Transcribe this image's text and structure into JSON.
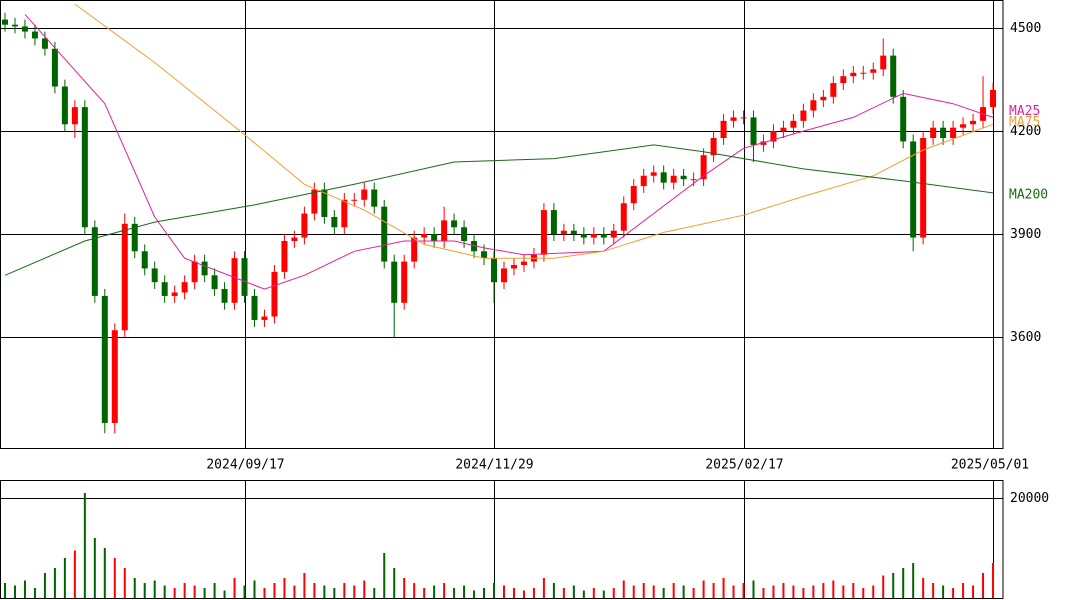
{
  "chart_data": {
    "type": "candlestick",
    "categories": [
      null,
      null,
      null,
      null,
      null,
      null,
      null,
      null,
      null,
      null,
      null,
      null,
      null,
      null,
      null,
      null,
      null,
      null,
      null,
      null,
      null,
      null,
      null,
      null,
      "2024/09/17",
      null,
      null,
      null,
      null,
      null,
      null,
      null,
      null,
      null,
      null,
      null,
      null,
      null,
      null,
      null,
      null,
      null,
      null,
      null,
      null,
      null,
      null,
      null,
      null,
      "2024/11/29",
      null,
      null,
      null,
      null,
      null,
      null,
      null,
      null,
      null,
      null,
      null,
      null,
      null,
      null,
      null,
      null,
      null,
      null,
      null,
      null,
      null,
      null,
      null,
      null,
      "2025/02/17",
      null,
      null,
      null,
      null,
      null,
      null,
      null,
      null,
      null,
      null,
      null,
      null,
      null,
      null,
      null,
      null,
      null,
      null,
      null,
      null,
      null,
      null,
      null,
      null,
      "2025/05/01"
    ],
    "open": [
      4525,
      4510,
      4505,
      4490,
      4470,
      4440,
      4330,
      4220,
      4270,
      3920,
      3720,
      3350,
      3620,
      3930,
      3850,
      3800,
      3760,
      3720,
      3730,
      3760,
      3820,
      3780,
      3740,
      3700,
      3830,
      3720,
      3650,
      3660,
      3790,
      3880,
      3890,
      3960,
      4030,
      3950,
      3920,
      4000,
      4000,
      4030,
      3980,
      3820,
      3700,
      3820,
      3890,
      3900,
      3880,
      3940,
      3920,
      3880,
      3850,
      3830,
      3760,
      3800,
      3810,
      3820,
      3840,
      3970,
      3900,
      3910,
      3900,
      3890,
      3900,
      3890,
      3910,
      3990,
      4040,
      4070,
      4080,
      4050,
      4070,
      4060,
      4060,
      4130,
      4180,
      4230,
      4240,
      4240,
      4160,
      4170,
      4200,
      4210,
      4230,
      4260,
      4290,
      4300,
      4340,
      4360,
      4370,
      4370,
      4380,
      4420,
      4300,
      4170,
      3890,
      4180,
      4210,
      4180,
      4210,
      4220,
      4230,
      4270
    ],
    "high": [
      4545,
      4530,
      4525,
      4510,
      4490,
      4460,
      4350,
      4290,
      4290,
      3940,
      3740,
      3640,
      3960,
      3950,
      3870,
      3820,
      3780,
      3750,
      3780,
      3840,
      3840,
      3800,
      3760,
      3850,
      3850,
      3740,
      3680,
      3810,
      3900,
      3910,
      3980,
      4050,
      4050,
      3970,
      4020,
      4020,
      4050,
      4050,
      4000,
      3840,
      3840,
      3910,
      3920,
      3920,
      3980,
      3960,
      3940,
      3900,
      3870,
      3850,
      3820,
      3830,
      3840,
      3860,
      3990,
      3990,
      3930,
      3930,
      3920,
      3920,
      3920,
      3930,
      4010,
      4060,
      4090,
      4100,
      4100,
      4090,
      4090,
      4080,
      4150,
      4200,
      4250,
      4260,
      4260,
      4260,
      4190,
      4220,
      4230,
      4250,
      4280,
      4310,
      4320,
      4360,
      4380,
      4390,
      4390,
      4400,
      4470,
      4440,
      4320,
      4190,
      4200,
      4230,
      4230,
      4230,
      4240,
      4250,
      4360,
      4340
    ],
    "low": [
      4490,
      4485,
      4470,
      4450,
      4420,
      4310,
      4200,
      4180,
      3900,
      3700,
      3320,
      3320,
      3600,
      3830,
      3780,
      3740,
      3700,
      3700,
      3710,
      3740,
      3760,
      3720,
      3680,
      3680,
      3700,
      3630,
      3630,
      3640,
      3770,
      3860,
      3870,
      3940,
      3930,
      3900,
      3900,
      3980,
      3980,
      3960,
      3800,
      3600,
      3680,
      3800,
      3870,
      3860,
      3860,
      3900,
      3860,
      3830,
      3810,
      3700,
      3740,
      3780,
      3790,
      3800,
      3820,
      3880,
      3880,
      3880,
      3870,
      3870,
      3870,
      3870,
      3890,
      3970,
      4020,
      4050,
      4030,
      4030,
      4040,
      4040,
      4040,
      4110,
      4160,
      4210,
      4220,
      4110,
      4140,
      4150,
      4180,
      4190,
      4210,
      4240,
      4270,
      4280,
      4320,
      4340,
      4350,
      4350,
      4360,
      4280,
      4150,
      3850,
      3870,
      4160,
      4160,
      4160,
      4190,
      4200,
      4210,
      4250
    ],
    "close": [
      4510,
      4505,
      4490,
      4470,
      4440,
      4330,
      4220,
      4270,
      3920,
      3720,
      3350,
      3620,
      3930,
      3850,
      3800,
      3760,
      3720,
      3730,
      3760,
      3820,
      3780,
      3740,
      3700,
      3830,
      3720,
      3650,
      3660,
      3790,
      3880,
      3890,
      3960,
      4030,
      3950,
      3920,
      4000,
      4000,
      4030,
      3980,
      3820,
      3700,
      3820,
      3890,
      3900,
      3880,
      3940,
      3920,
      3880,
      3850,
      3830,
      3760,
      3800,
      3810,
      3820,
      3840,
      3970,
      3900,
      3910,
      3900,
      3890,
      3900,
      3890,
      3910,
      3990,
      4040,
      4070,
      4080,
      4050,
      4070,
      4060,
      4060,
      4130,
      4180,
      4230,
      4240,
      4240,
      4160,
      4170,
      4200,
      4210,
      4230,
      4260,
      4290,
      4300,
      4340,
      4360,
      4370,
      4370,
      4380,
      4420,
      4300,
      4170,
      3890,
      4180,
      4210,
      4180,
      4210,
      4220,
      4230,
      4270,
      4320
    ],
    "up_color": "#ff0000",
    "down_color": "#006400",
    "ylim": [
      3277,
      4582
    ],
    "yticks": [
      3600,
      3900,
      4200,
      4500
    ],
    "grid": true,
    "moving_averages": [
      {
        "name": "MA25",
        "color": "#e0209a",
        "x": [
          2,
          10,
          15,
          18,
          26,
          30,
          35,
          40,
          45,
          48,
          52,
          60,
          65,
          70,
          74,
          80,
          85,
          90,
          95,
          99
        ],
        "values": [
          4540,
          4280,
          3950,
          3830,
          3740,
          3780,
          3850,
          3880,
          3880,
          3860,
          3840,
          3850,
          3960,
          4070,
          4150,
          4200,
          4240,
          4310,
          4280,
          4240
        ]
      },
      {
        "name": "MA75",
        "color": "#f0a030",
        "x": [
          7,
          15,
          24,
          30,
          36,
          42,
          48,
          55,
          60,
          66,
          74,
          80,
          87,
          92,
          99
        ],
        "values": [
          4570,
          4400,
          4190,
          4045,
          3970,
          3870,
          3830,
          3830,
          3850,
          3905,
          3955,
          4010,
          4070,
          4145,
          4220
        ]
      },
      {
        "name": "MA200",
        "color": "#1a6b1a",
        "x": [
          0,
          8,
          15,
          25,
          35,
          45,
          55,
          65,
          70,
          80,
          90,
          99
        ],
        "values": [
          3780,
          3880,
          3935,
          3985,
          4045,
          4110,
          4120,
          4160,
          4140,
          4090,
          4055,
          4020
        ]
      }
    ],
    "volume": {
      "values": [
        3000,
        2500,
        3500,
        2000,
        5000,
        6000,
        8000,
        9500,
        21000,
        12000,
        10000,
        8000,
        6000,
        4000,
        3000,
        3500,
        2500,
        2000,
        3000,
        2500,
        2000,
        3000,
        1500,
        4000,
        2500,
        3500,
        2000,
        3000,
        4000,
        2500,
        5000,
        3000,
        2500,
        2000,
        3000,
        2500,
        3500,
        2000,
        9000,
        6000,
        4000,
        3000,
        2000,
        2500,
        3000,
        2000,
        2500,
        1500,
        2000,
        3000,
        2500,
        2000,
        1500,
        2000,
        4000,
        3000,
        2000,
        2500,
        1500,
        2000,
        1500,
        2000,
        3500,
        2500,
        3000,
        2500,
        2000,
        3000,
        2500,
        2000,
        3500,
        3000,
        4000,
        2500,
        3000,
        3500,
        2000,
        2500,
        3000,
        2500,
        2000,
        2500,
        3000,
        3500,
        2500,
        3000,
        2000,
        2500,
        4500,
        5000,
        6000,
        7000,
        4000,
        3000,
        2500,
        2000,
        3000,
        2500,
        5000,
        7000
      ],
      "ylim": [
        0,
        23600
      ],
      "yticks": [
        20000
      ]
    }
  }
}
